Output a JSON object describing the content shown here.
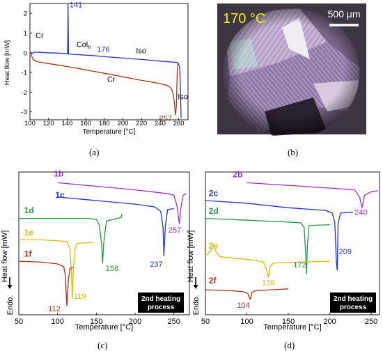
{
  "captions": {
    "a": "(a)",
    "b": "(b)",
    "c": "(c)",
    "d": "(d)"
  },
  "micrograph": {
    "temperature_label": "170 °C",
    "scale_label": "500 μm",
    "colors": {
      "background": "#3d3542",
      "temperature_text": "#f2f20a",
      "scale_text": "#ffffff"
    }
  },
  "chart_data": [
    {
      "id": "a",
      "type": "line",
      "xlabel": "Temperature [°C]",
      "ylabel": "Heat flow [mW]",
      "xlim": [
        100,
        270
      ],
      "ylim": [
        -3.4,
        2.5
      ],
      "xticks": [
        100,
        120,
        140,
        160,
        180,
        200,
        220,
        240,
        260
      ],
      "yticks": [
        -3,
        -2,
        -1,
        0,
        1,
        2
      ],
      "grid": false,
      "series": [
        {
          "color": "#2233cc",
          "points": [
            [
              101,
              -0.05
            ],
            [
              105,
              0.03
            ],
            [
              110,
              0.02
            ],
            [
              120,
              0.0
            ],
            [
              130,
              -0.02
            ],
            [
              138,
              -0.04
            ],
            [
              140.5,
              -0.05
            ],
            [
              141,
              2.45
            ],
            [
              141.5,
              -0.06
            ],
            [
              150,
              -0.09
            ],
            [
              160,
              -0.12
            ],
            [
              170,
              -0.15
            ],
            [
              176,
              -0.18
            ],
            [
              180,
              -0.2
            ],
            [
              200,
              -0.27
            ],
            [
              220,
              -0.34
            ],
            [
              240,
              -0.42
            ],
            [
              255,
              -0.48
            ],
            [
              259,
              -0.5
            ],
            [
              261,
              -0.7
            ],
            [
              262,
              -2.0
            ],
            [
              262.5,
              -3.3
            ]
          ]
        },
        {
          "color": "#aa3311",
          "points": [
            [
              101,
              -0.05
            ],
            [
              103,
              -0.3
            ],
            [
              106,
              -0.42
            ],
            [
              110,
              -0.47
            ],
            [
              120,
              -0.55
            ],
            [
              130,
              -0.62
            ],
            [
              140,
              -0.7
            ],
            [
              150,
              -0.78
            ],
            [
              160,
              -0.87
            ],
            [
              180,
              -1.04
            ],
            [
              200,
              -1.22
            ],
            [
              220,
              -1.4
            ],
            [
              235,
              -1.52
            ],
            [
              245,
              -1.62
            ],
            [
              250,
              -1.72
            ],
            [
              253,
              -1.9
            ],
            [
              255,
              -2.4
            ],
            [
              256.5,
              -3.15
            ],
            [
              257.5,
              -2.7
            ],
            [
              258.5,
              -0.9
            ],
            [
              259,
              -0.6
            ],
            [
              260,
              -0.52
            ]
          ]
        }
      ],
      "annotations": [
        {
          "text": "141",
          "x": 142.5,
          "y": 2.3,
          "color": "#2233cc"
        },
        {
          "text": "Cr",
          "x": 106,
          "y": 0.75,
          "color": "#000000"
        },
        {
          "text": "Col",
          "sub": "h",
          "x": 150,
          "y": 0.3,
          "color": "#000000"
        },
        {
          "text": "176",
          "x": 172,
          "y": 0.05,
          "color": "#2233cc"
        },
        {
          "text": "Iso",
          "x": 214,
          "y": -0.02,
          "color": "#000000"
        },
        {
          "text": "Cr",
          "x": 183,
          "y": -1.47,
          "color": "#000000"
        },
        {
          "text": "Iso",
          "x": 259,
          "y": -2.35,
          "color": "#000000"
        },
        {
          "text": "257",
          "x": 239,
          "y": -3.45,
          "color": "#aa3311"
        }
      ]
    },
    {
      "id": "c",
      "type": "line",
      "xlabel": "Temperature [°C]",
      "ylabel": "Heat flow [mW]",
      "endo_label": "Endo.",
      "box_label_1": "2nd heating",
      "box_label_2": "process",
      "xlim": [
        50,
        270
      ],
      "xticks": [
        50,
        100,
        150,
        200,
        250
      ],
      "grid": false,
      "series": [
        {
          "label": "1b",
          "color": "#9933cc",
          "baseline": 5,
          "points": [
            [
              100,
              5
            ],
            [
              150,
              4.8
            ],
            [
              200,
              4.6
            ],
            [
              240,
              4.4
            ],
            [
              250,
              4.3
            ],
            [
              254,
              3.7
            ],
            [
              257,
              2.7
            ],
            [
              259,
              3.6
            ],
            [
              262,
              4.3
            ],
            [
              266,
              4.4
            ]
          ]
        },
        {
          "label": "1c",
          "color": "#2233cc",
          "baseline": 4.2,
          "points": [
            [
              100,
              4.2
            ],
            [
              150,
              4.0
            ],
            [
              200,
              3.8
            ],
            [
              225,
              3.65
            ],
            [
              233,
              3.4
            ],
            [
              236,
              2.5
            ],
            [
              237,
              0.9
            ],
            [
              239,
              2.6
            ],
            [
              242,
              3.5
            ],
            [
              250,
              3.55
            ]
          ]
        },
        {
          "label": "1d",
          "color": "#229944",
          "baseline": 3,
          "points": [
            [
              50,
              3
            ],
            [
              100,
              3
            ],
            [
              140,
              3
            ],
            [
              150,
              2.95
            ],
            [
              154,
              2.6
            ],
            [
              157,
              1.4
            ],
            [
              158,
              0.5
            ],
            [
              159.5,
              1.6
            ],
            [
              163,
              2.85
            ],
            [
              182,
              3.05
            ],
            [
              183,
              3.25
            ]
          ]
        },
        {
          "label": "1e",
          "color": "#ddbb00",
          "baseline": 1.8,
          "points": [
            [
              50,
              1.8
            ],
            [
              80,
              1.8
            ],
            [
              100,
              1.75
            ],
            [
              112,
              1.7
            ],
            [
              116,
              1.3
            ],
            [
              118,
              -0.1
            ],
            [
              119,
              -1.5
            ],
            [
              120,
              -0.2
            ],
            [
              122,
              1.2
            ],
            [
              125,
              1.6
            ],
            [
              145,
              1.65
            ]
          ]
        },
        {
          "label": "1f",
          "color": "#aa3311",
          "baseline": 0.6,
          "points": [
            [
              50,
              0.6
            ],
            [
              80,
              0.55
            ],
            [
              100,
              0.45
            ],
            [
              108,
              0.3
            ],
            [
              110,
              -0.2
            ],
            [
              112,
              -1.9
            ],
            [
              114,
              -0.4
            ],
            [
              116,
              0.2
            ],
            [
              120,
              0.25
            ]
          ]
        }
      ],
      "annotations": [
        {
          "text": "1b",
          "x": 95,
          "y": 5.35,
          "color": "#9933cc"
        },
        {
          "text": "257",
          "x": 243,
          "y": 2.2,
          "color": "#9933cc"
        },
        {
          "text": "1c",
          "x": 97,
          "y": 4.15,
          "color": "#2233cc"
        },
        {
          "text": "237",
          "x": 219,
          "y": 0.3,
          "color": "#2233cc"
        },
        {
          "text": "1d",
          "x": 57,
          "y": 3.3,
          "color": "#229944"
        },
        {
          "text": "158",
          "x": 162,
          "y": 0.05,
          "color": "#229944"
        },
        {
          "text": "1e",
          "x": 57,
          "y": 2.05,
          "color": "#ddbb00"
        },
        {
          "text": "119",
          "x": 121,
          "y": -1.5,
          "color": "#ddbb00"
        },
        {
          "text": "1f",
          "x": 57,
          "y": 0.85,
          "color": "#aa3311"
        },
        {
          "text": "112",
          "x": 88,
          "y": -2.2,
          "color": "#aa3311"
        }
      ]
    },
    {
      "id": "d",
      "type": "line",
      "xlabel": "Temperature [°C]",
      "ylabel": "Heat flow [mW]",
      "endo_label": "Endo.",
      "box_label_1": "2nd heating",
      "box_label_2": "process",
      "xlim": [
        50,
        260
      ],
      "xticks": [
        50,
        100,
        150,
        200,
        250
      ],
      "grid": false,
      "series": [
        {
          "label": "2b",
          "color": "#9933cc",
          "baseline": 5,
          "points": [
            [
              100,
              5
            ],
            [
              150,
              4.85
            ],
            [
              200,
              4.7
            ],
            [
              230,
              4.6
            ],
            [
              236,
              4.2
            ],
            [
              239,
              3.6
            ],
            [
              242,
              4.3
            ],
            [
              250,
              4.5
            ],
            [
              258,
              4.55
            ]
          ]
        },
        {
          "label": "2c",
          "color": "#2233cc",
          "baseline": 4,
          "points": [
            [
              50,
              4
            ],
            [
              100,
              3.85
            ],
            [
              150,
              3.6
            ],
            [
              195,
              3.45
            ],
            [
              203,
              3.3
            ],
            [
              206,
              2.8
            ],
            [
              208,
              0.5
            ],
            [
              209,
              0.1
            ],
            [
              210,
              2.7
            ],
            [
              213,
              3.3
            ],
            [
              228,
              3.35
            ]
          ]
        },
        {
          "label": "2d",
          "color": "#229944",
          "baseline": 3,
          "points": [
            [
              50,
              3
            ],
            [
              100,
              2.9
            ],
            [
              150,
              2.8
            ],
            [
              165,
              2.75
            ],
            [
              169,
              2.5
            ],
            [
              171,
              1.0
            ],
            [
              172,
              -0.1
            ],
            [
              173,
              1.5
            ],
            [
              175,
              2.6
            ],
            [
              200,
              2.65
            ]
          ]
        },
        {
          "label": "2e",
          "color": "#ddbb00",
          "baseline": 0.9,
          "points": [
            [
              50,
              0.9
            ],
            [
              55,
              1.1
            ],
            [
              60,
              1.5
            ],
            [
              63,
              1.1
            ],
            [
              68,
              0.85
            ],
            [
              90,
              0.75
            ],
            [
              110,
              0.65
            ],
            [
              120,
              0.55
            ],
            [
              124,
              0.1
            ],
            [
              126,
              -0.3
            ],
            [
              128,
              0.3
            ],
            [
              132,
              0.5
            ],
            [
              160,
              0.55
            ],
            [
              200,
              0.6
            ]
          ]
        },
        {
          "label": "2f",
          "color": "#aa3311",
          "baseline": -1,
          "points": [
            [
              50,
              -1
            ],
            [
              80,
              -1.05
            ],
            [
              95,
              -1.1
            ],
            [
              101,
              -1.2
            ],
            [
              104,
              -1.55
            ],
            [
              106,
              -1.15
            ],
            [
              110,
              -1.05
            ],
            [
              130,
              -1.0
            ],
            [
              150,
              -0.95
            ]
          ]
        }
      ],
      "annotations": [
        {
          "text": "2b",
          "x": 83,
          "y": 5.3,
          "color": "#9933cc"
        },
        {
          "text": "240",
          "x": 230,
          "y": 3.2,
          "color": "#9933cc"
        },
        {
          "text": "2c",
          "x": 54,
          "y": 4.25,
          "color": "#2233cc"
        },
        {
          "text": "209",
          "x": 211,
          "y": 1.0,
          "color": "#2233cc"
        },
        {
          "text": "2d",
          "x": 54,
          "y": 3.25,
          "color": "#229944"
        },
        {
          "text": "172",
          "x": 156,
          "y": 0.25,
          "color": "#229944"
        },
        {
          "text": "2e",
          "x": 54,
          "y": 1.3,
          "color": "#ddbb00"
        },
        {
          "text": "126",
          "x": 118,
          "y": -0.75,
          "color": "#ddbb00"
        },
        {
          "text": "2f",
          "x": 54,
          "y": -0.65,
          "color": "#aa3311"
        },
        {
          "text": "104",
          "x": 88,
          "y": -2.0,
          "color": "#aa3311"
        }
      ]
    }
  ]
}
